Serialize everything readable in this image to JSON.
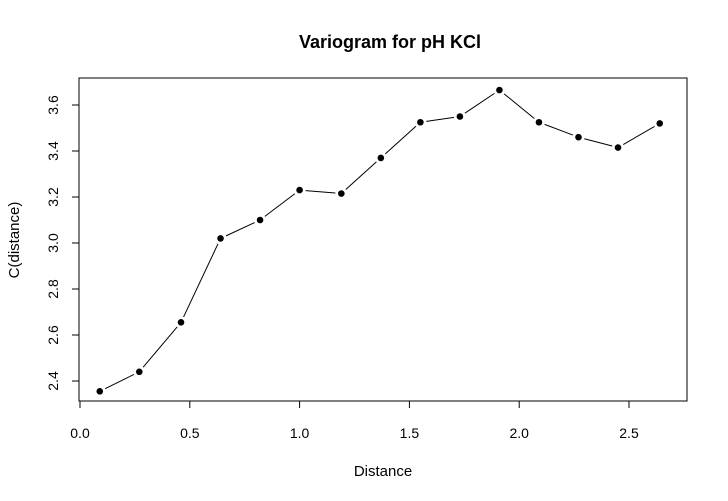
{
  "chart_data": {
    "type": "line",
    "title": "Variogram for pH KCl",
    "xlabel": "Distance",
    "ylabel": "C(distance)",
    "xlim": [
      0.0,
      2.7
    ],
    "ylim": [
      2.35,
      3.68
    ],
    "x_ticks": [
      0.0,
      0.5,
      1.0,
      1.5,
      2.0,
      2.5
    ],
    "x_tick_labels": [
      "0.0",
      "0.5",
      "1.0",
      "1.5",
      "2.0",
      "2.5"
    ],
    "y_ticks": [
      2.4,
      2.6,
      2.8,
      3.0,
      3.2,
      3.4,
      3.6
    ],
    "y_tick_labels": [
      "2.4",
      "2.6",
      "2.8",
      "3.0",
      "3.2",
      "3.4",
      "3.6"
    ],
    "grid": false,
    "legend": "none",
    "x": [
      0.09,
      0.27,
      0.46,
      0.64,
      0.82,
      1.0,
      1.19,
      1.37,
      1.55,
      1.73,
      1.91,
      2.09,
      2.27,
      2.45,
      2.64
    ],
    "values": [
      2.355,
      2.44,
      2.655,
      3.02,
      3.1,
      3.23,
      3.215,
      3.37,
      3.525,
      3.55,
      3.665,
      3.525,
      3.46,
      3.415,
      3.52
    ],
    "series_color": "#000000"
  }
}
